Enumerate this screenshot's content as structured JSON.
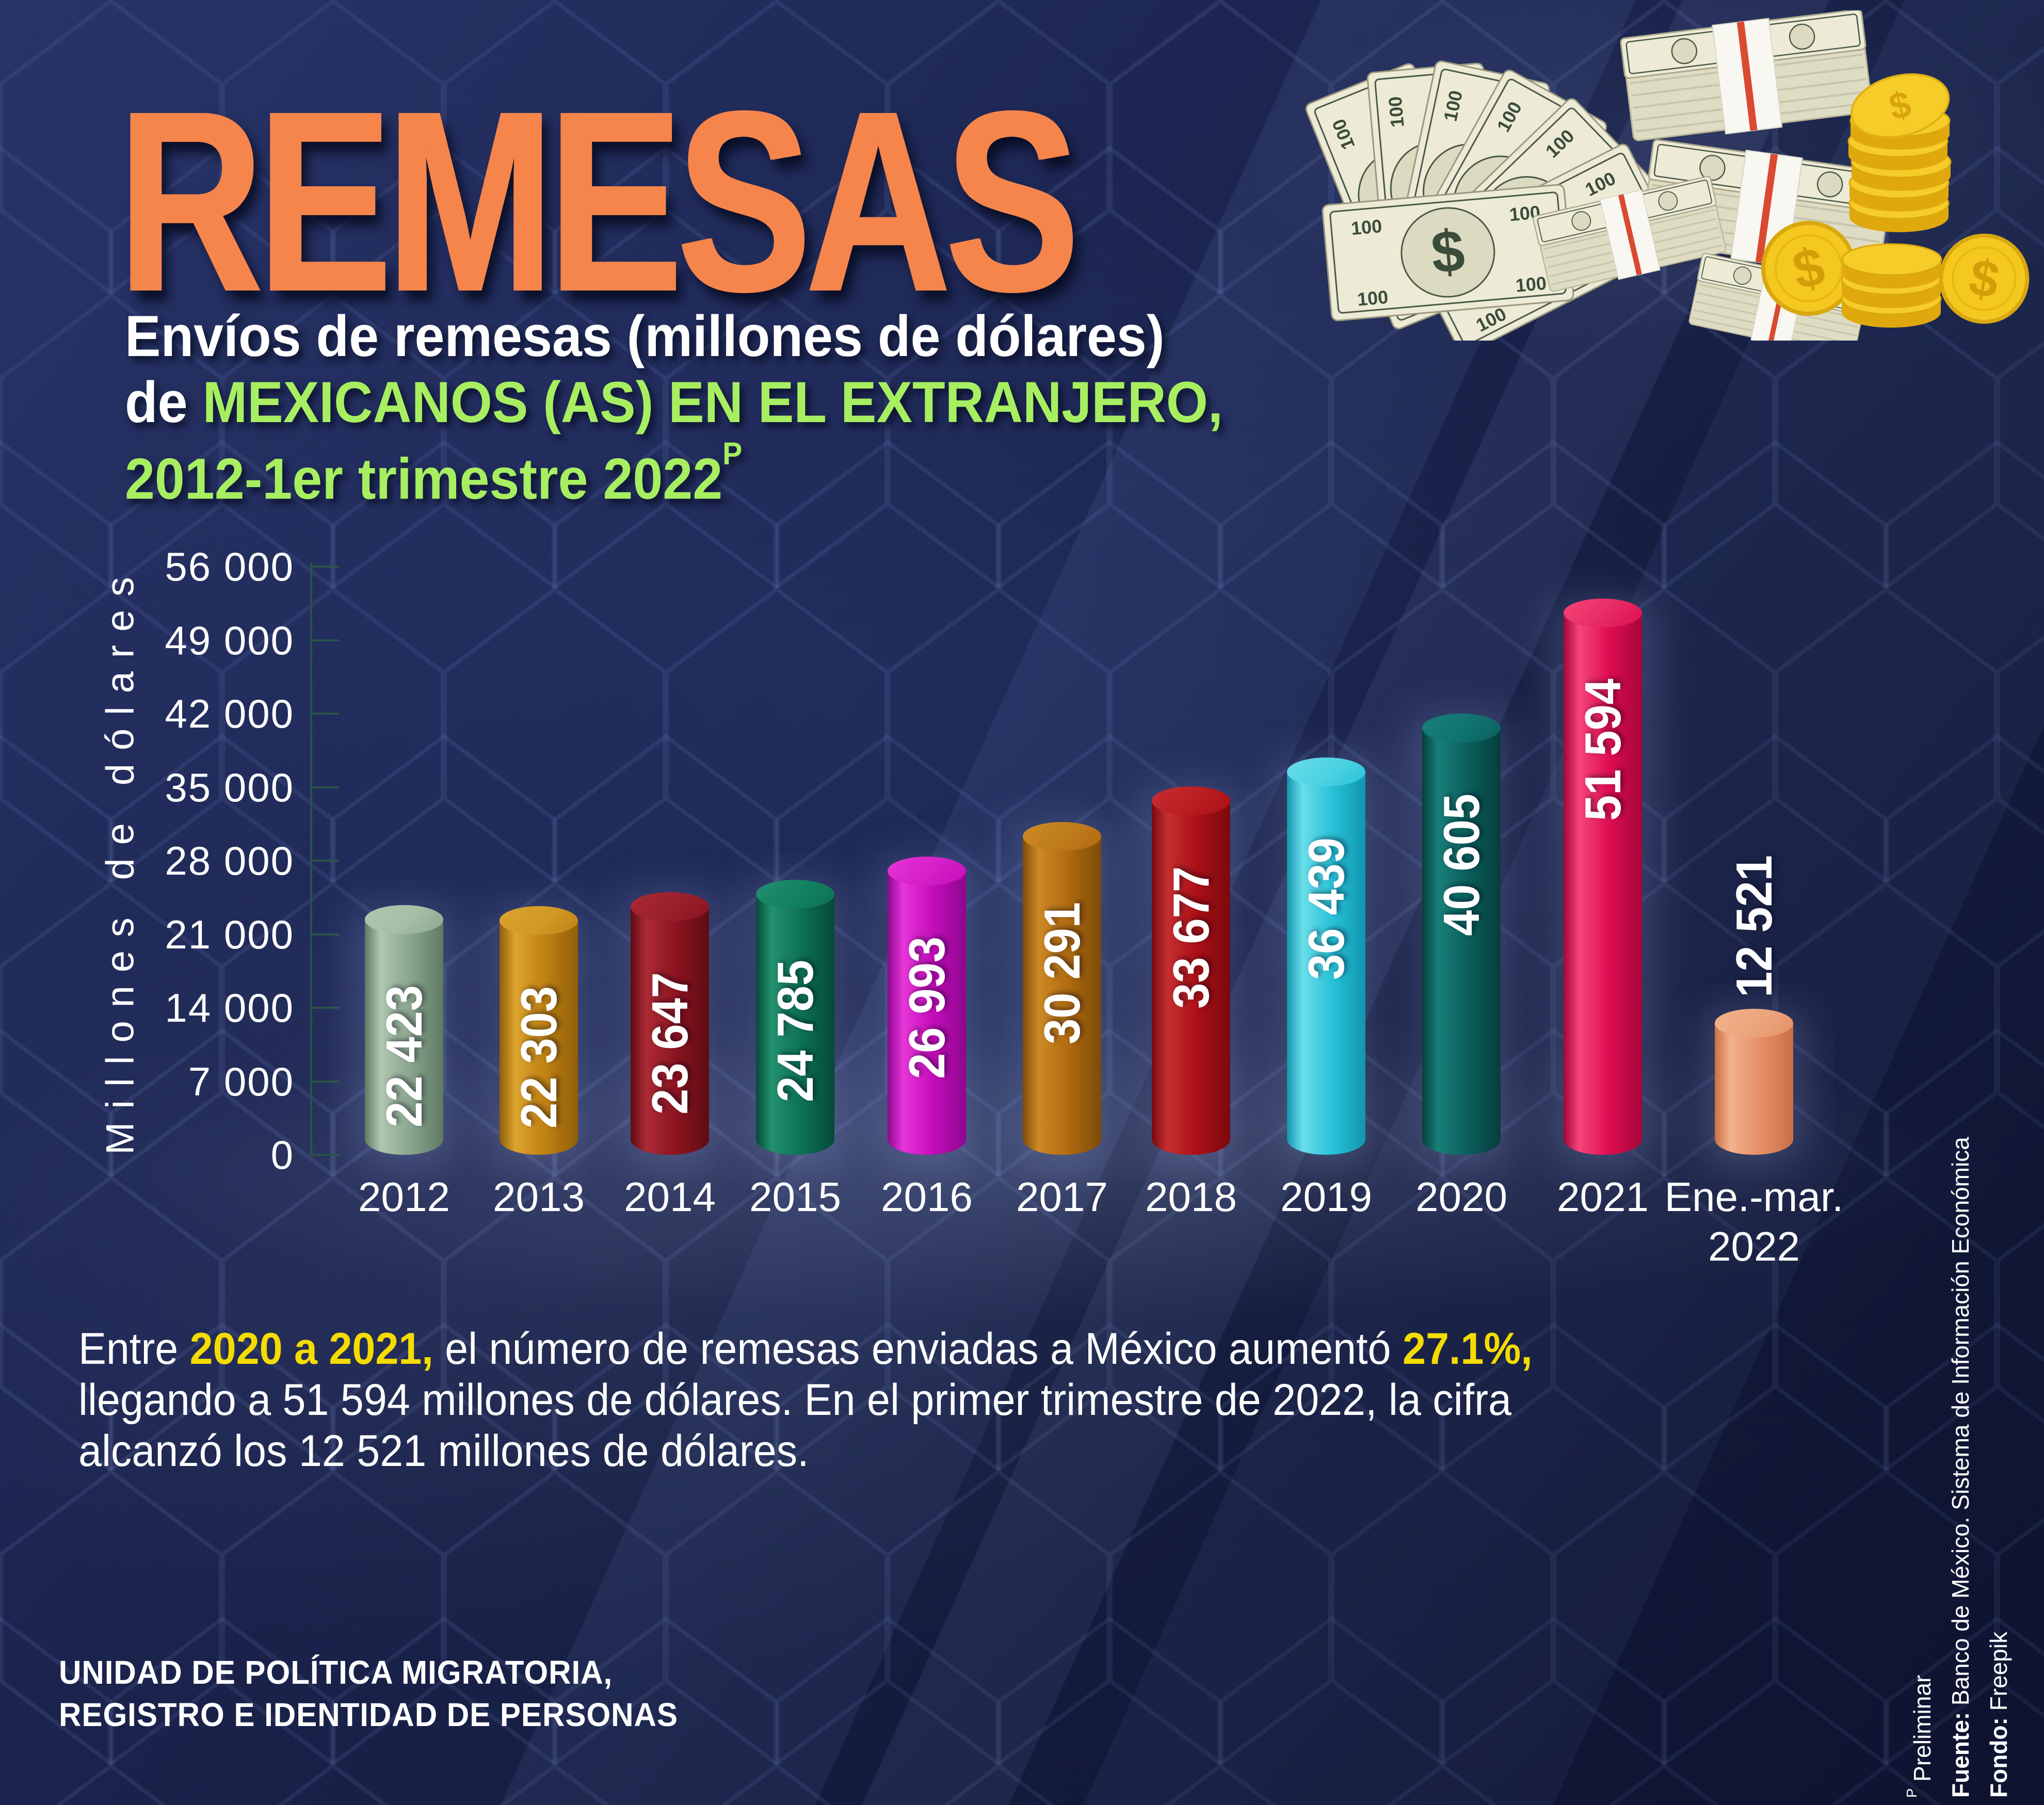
{
  "title": "REMESAS",
  "subtitle": {
    "line1": "Envíos de remesas (millones de dólares)",
    "line2_prefix": "de ",
    "line2_highlight": "MEXICANOS (AS) EN EL EXTRANJERO,",
    "line3": "2012-1er trimestre 2022",
    "line3_sup": "P"
  },
  "chart_data": {
    "type": "bar",
    "title": "Envíos de remesas (millones de dólares) de mexicanos (as) en el extranjero, 2012-1er trimestre 2022 (preliminar)",
    "xlabel": "",
    "ylabel": "Millones de dólares",
    "ylim": [
      0,
      56000
    ],
    "ytick_interval": 7000,
    "ytick_labels": [
      "0",
      "7 000",
      "14 000",
      "21 000",
      "28 000",
      "35 000",
      "42 000",
      "49 000",
      "56 000"
    ],
    "grid": "off",
    "legend": "none",
    "categories": [
      "2012",
      "2013",
      "2014",
      "2015",
      "2016",
      "2017",
      "2018",
      "2019",
      "2020",
      "2021",
      "Ene.-mar. 2022"
    ],
    "categories_display": [
      "2012",
      "2013",
      "2014",
      "2015",
      "2016",
      "2017",
      "2018",
      "2019",
      "2020",
      "2021",
      "Ene.-mar.|2022"
    ],
    "values": [
      22423,
      22303,
      23647,
      24785,
      26993,
      30291,
      33677,
      36439,
      40605,
      51594,
      12521
    ],
    "value_labels": [
      "22 423",
      "22 303",
      "23 647",
      "24 785",
      "26 993",
      "30 291",
      "33 677",
      "36 439",
      "40 605",
      "51 594",
      "12 521"
    ],
    "bar_colors": [
      {
        "main": "#8BA68E",
        "light": "#AFC6B1",
        "dark": "#5E7A64",
        "top": "#A6BEA8"
      },
      {
        "main": "#C08112",
        "light": "#DCA42E",
        "dark": "#8F5F08",
        "top": "#D09A26"
      },
      {
        "main": "#8C1420",
        "light": "#AB2A36",
        "dark": "#5F0C14",
        "top": "#99202B"
      },
      {
        "main": "#0C7154",
        "light": "#23906E",
        "dark": "#064A37",
        "top": "#128160"
      },
      {
        "main": "#C40DBA",
        "light": "#E635D8",
        "dark": "#8E068E",
        "top": "#D420C6"
      },
      {
        "main": "#B06A10",
        "light": "#CD8A26",
        "dark": "#7E4B08",
        "top": "#BE7B1B"
      },
      {
        "main": "#AA0F15",
        "light": "#C62F31",
        "dark": "#7A0A0E",
        "top": "#B81D21"
      },
      {
        "main": "#27C2D8",
        "light": "#6ADEEA",
        "dark": "#1295B0",
        "top": "#4CD2E2"
      },
      {
        "main": "#0B5F5C",
        "light": "#1A7F79",
        "dark": "#053E3C",
        "top": "#107370"
      },
      {
        "main": "#DE0D52",
        "light": "#F54579",
        "dark": "#A50539",
        "top": "#E62B63"
      },
      {
        "main": "#E58F66",
        "light": "#F2B28C",
        "dark": "#C96F45",
        "top": "#ECA57D"
      }
    ]
  },
  "annotation": {
    "lines": [
      [
        {
          "t": "Entre ",
          "c": "w"
        },
        {
          "t": "2020 a 2021,",
          "c": "y"
        },
        {
          "t": " el número de remesas enviadas a México aumentó ",
          "c": "w"
        },
        {
          "t": "27.1%,",
          "c": "y"
        }
      ],
      [
        {
          "t": "llegando a 51 594 millones de dólares. En el primer trimestre de 2022, la cifra",
          "c": "w"
        }
      ],
      [
        {
          "t": "alcanzó los 12 521 millones de dólares.",
          "c": "w"
        }
      ]
    ]
  },
  "footer": {
    "line1": "UNIDAD DE POLÍTICA MIGRATORIA,",
    "line2": "REGISTRO E IDENTIDAD DE PERSONAS"
  },
  "side_notes": {
    "preliminar_sup": "P",
    "preliminar_text": " Preliminar",
    "fuente_label": "Fuente:",
    "fuente_text": " Banco de México. Sistema de Información Económica",
    "fondo_label": "Fondo:",
    "fondo_text": " Freepik"
  },
  "money": {
    "dollar_sign": "$",
    "bill_value": "100"
  },
  "accent_colors": {
    "title_orange": "#F6854B",
    "highlight_green": "#A7EF61",
    "highlight_yellow": "#F5DC00",
    "background_navy": "#1C2550"
  }
}
